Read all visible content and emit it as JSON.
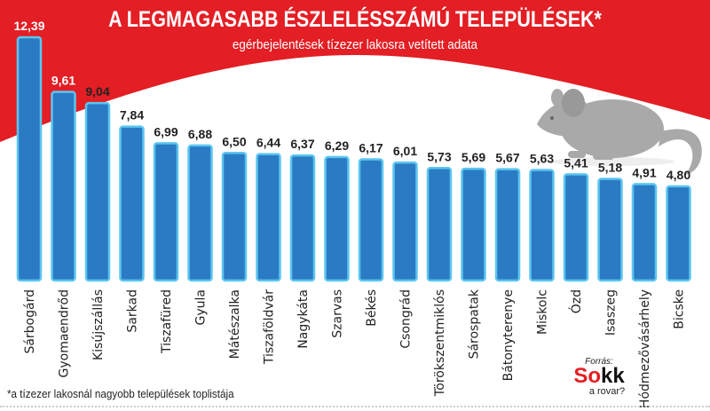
{
  "title": "A LEGMAGASABB ÉSZLELÉSSZÁMÚ TELEPÜLÉSEK*",
  "subtitle": "egérbejelentések tízezer lakosra vetített adata",
  "footnote": "*a tízezer lakosnál nagyobb települések toplistája",
  "source": {
    "label": "Forrás:",
    "logo_text": "Sokk",
    "logo_subtext": "a rovar?"
  },
  "colors": {
    "background_red": "#e31e24",
    "bar_fill": "#2a7bc4",
    "bar_outline": "#5cc6f0",
    "mouse": "#a9a9a9"
  },
  "icons": {
    "illustration": "mouse-icon"
  },
  "chart_data": {
    "type": "bar",
    "title": "A LEGMAGASABB ÉSZLELÉSSZÁMÚ TELEPÜLÉSEK*",
    "subtitle": "egérbejelentések tízezer lakosra vetített adata",
    "categories": [
      "Sárbogárd",
      "Gyomaendrőd",
      "Kisújszállás",
      "Sarkad",
      "Tiszafüred",
      "Gyula",
      "Mátészalka",
      "Tiszaföldvár",
      "Nagykáta",
      "Szarvas",
      "Békés",
      "Csongrád",
      "Törökszentmiklós",
      "Sárospatak",
      "Bátonyterenye",
      "Miskolc",
      "Ózd",
      "Isaszeg",
      "Hódmezővásárhely",
      "Bicske"
    ],
    "values": [
      12.39,
      9.61,
      9.04,
      7.84,
      6.99,
      6.88,
      6.5,
      6.44,
      6.37,
      6.29,
      6.17,
      6.01,
      5.73,
      5.69,
      5.67,
      5.63,
      5.41,
      5.18,
      4.91,
      4.8
    ],
    "labels": [
      "12,39",
      "9,61",
      "9,04",
      "7,84",
      "6,99",
      "6,88",
      "6,50",
      "6,44",
      "6,37",
      "6,29",
      "6,17",
      "6,01",
      "5,73",
      "5,69",
      "5,67",
      "5,63",
      "5,41",
      "5,18",
      "4,91",
      "4,80"
    ],
    "ylim": [
      0,
      12.39
    ],
    "grid": false,
    "legend": "none"
  }
}
